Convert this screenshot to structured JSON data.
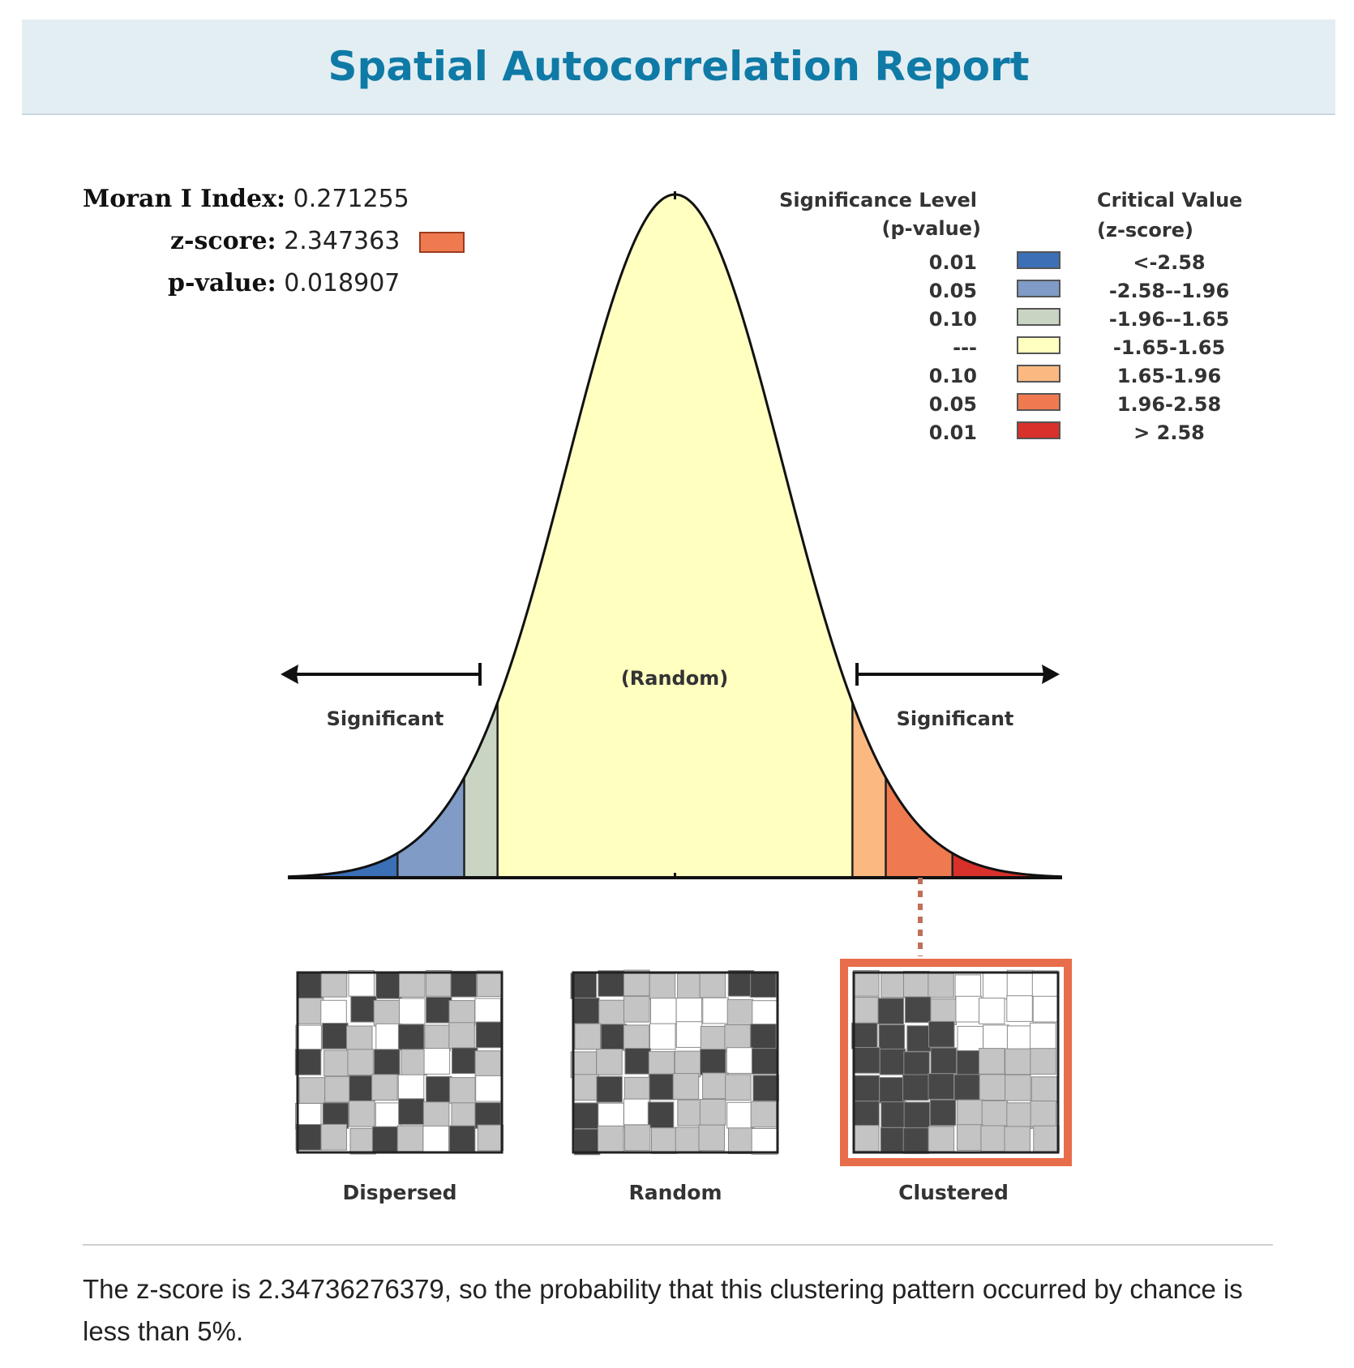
{
  "report": {
    "title": "Spatial Autocorrelation Report",
    "summary": "The z-score is 2.34736276379, so the probability that this clustering pattern occurred by chance is less than 5%."
  },
  "stats": {
    "moran_label": "Moran I Index:",
    "moran_value": "0.271255",
    "z_label": "z-score:",
    "z_value": "2.347363",
    "z_color": "#f07a50",
    "p_label": "p-value:",
    "p_value": "0.018907"
  },
  "chart_data": {
    "type": "area",
    "description_curve": "standard normal distribution",
    "x_range": [
      -3.6,
      3.6
    ],
    "bands": [
      {
        "from": -3.6,
        "to": -2.58,
        "color": "#3b6fb6"
      },
      {
        "from": -2.58,
        "to": -1.96,
        "color": "#7f9bc6"
      },
      {
        "from": -1.96,
        "to": -1.65,
        "color": "#c9d5c2"
      },
      {
        "from": -1.65,
        "to": 1.65,
        "color": "#ffffc0"
      },
      {
        "from": 1.65,
        "to": 1.96,
        "color": "#fbb981"
      },
      {
        "from": 1.96,
        "to": 2.58,
        "color": "#f07a50"
      },
      {
        "from": 2.58,
        "to": 3.6,
        "color": "#d8302a"
      }
    ],
    "observed_z": 2.347363,
    "annotations": {
      "left": "Significant",
      "center": "(Random)",
      "right": "Significant"
    },
    "legend": {
      "header_sig_line1": "Significance Level",
      "header_sig_line2": "(p-value)",
      "header_crit_line1": "Critical Value",
      "header_crit_line2": "(z-score)",
      "rows": [
        {
          "p": "0.01",
          "z": "<-2.58",
          "color": "#3b6fb6"
        },
        {
          "p": "0.05",
          "z": "-2.58--1.96",
          "color": "#7f9bc6"
        },
        {
          "p": "0.10",
          "z": "-1.96--1.65",
          "color": "#c9d5c2"
        },
        {
          "p": "---",
          "z": "-1.65-1.65",
          "color": "#ffffc0"
        },
        {
          "p": "0.10",
          "z": "1.65-1.96",
          "color": "#fbb981"
        },
        {
          "p": "0.05",
          "z": "1.96-2.58",
          "color": "#f07a50"
        },
        {
          "p": "0.01",
          "z": "> 2.58",
          "color": "#d8302a"
        }
      ]
    },
    "patterns": [
      {
        "label": "Dispersed",
        "highlighted": false
      },
      {
        "label": "Random",
        "highlighted": false
      },
      {
        "label": "Clustered",
        "highlighted": true
      }
    ],
    "highlight_color": "#e86d4a"
  }
}
